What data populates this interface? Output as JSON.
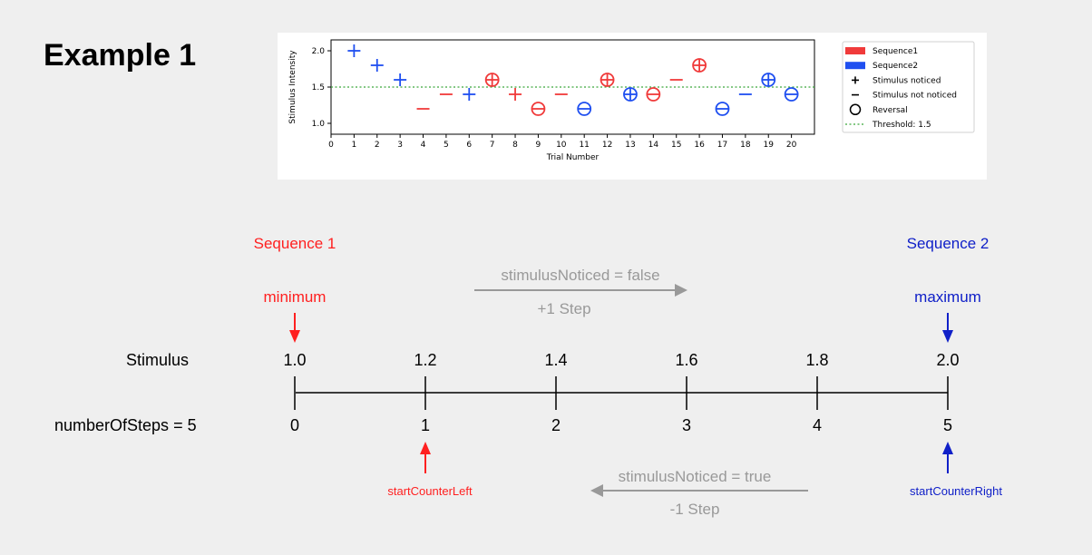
{
  "title": "Example 1",
  "chart_data": {
    "type": "scatter",
    "title": "",
    "xlabel": "Trial Number",
    "ylabel": "Stimulus Intensity",
    "xlim": [
      0,
      21
    ],
    "ylim": [
      0.85,
      2.15
    ],
    "xticks": [
      0,
      1,
      2,
      3,
      4,
      5,
      6,
      7,
      8,
      9,
      10,
      11,
      12,
      13,
      14,
      15,
      16,
      17,
      18,
      19,
      20
    ],
    "yticks": [
      1.0,
      1.5,
      2.0
    ],
    "ytick_labels": [
      "1.0",
      "1.5",
      "2.0"
    ],
    "threshold": 1.5,
    "points": [
      {
        "x": 1,
        "y": 2.0,
        "seq": 2,
        "noticed": true,
        "reversal": false
      },
      {
        "x": 2,
        "y": 1.8,
        "seq": 2,
        "noticed": true,
        "reversal": false
      },
      {
        "x": 3,
        "y": 1.6,
        "seq": 2,
        "noticed": true,
        "reversal": false
      },
      {
        "x": 4,
        "y": 1.2,
        "seq": 1,
        "noticed": false,
        "reversal": false
      },
      {
        "x": 5,
        "y": 1.4,
        "seq": 1,
        "noticed": false,
        "reversal": false
      },
      {
        "x": 6,
        "y": 1.4,
        "seq": 2,
        "noticed": true,
        "reversal": false
      },
      {
        "x": 7,
        "y": 1.6,
        "seq": 1,
        "noticed": true,
        "reversal": true
      },
      {
        "x": 8,
        "y": 1.4,
        "seq": 1,
        "noticed": true,
        "reversal": false
      },
      {
        "x": 9,
        "y": 1.2,
        "seq": 1,
        "noticed": false,
        "reversal": true
      },
      {
        "x": 10,
        "y": 1.4,
        "seq": 1,
        "noticed": false,
        "reversal": false
      },
      {
        "x": 11,
        "y": 1.2,
        "seq": 2,
        "noticed": false,
        "reversal": true
      },
      {
        "x": 12,
        "y": 1.6,
        "seq": 1,
        "noticed": true,
        "reversal": true
      },
      {
        "x": 13,
        "y": 1.4,
        "seq": 2,
        "noticed": true,
        "reversal": true
      },
      {
        "x": 14,
        "y": 1.4,
        "seq": 1,
        "noticed": false,
        "reversal": true
      },
      {
        "x": 15,
        "y": 1.6,
        "seq": 1,
        "noticed": false,
        "reversal": false
      },
      {
        "x": 16,
        "y": 1.8,
        "seq": 1,
        "noticed": true,
        "reversal": true
      },
      {
        "x": 17,
        "y": 1.2,
        "seq": 2,
        "noticed": false,
        "reversal": true
      },
      {
        "x": 18,
        "y": 1.4,
        "seq": 2,
        "noticed": false,
        "reversal": false
      },
      {
        "x": 19,
        "y": 1.6,
        "seq": 2,
        "noticed": true,
        "reversal": true
      },
      {
        "x": 20,
        "y": 1.4,
        "seq": 2,
        "noticed": false,
        "reversal": true
      }
    ],
    "legend": {
      "placement": "right",
      "entries": [
        {
          "label": "Sequence1",
          "kind": "patch",
          "color": "#f03a3a"
        },
        {
          "label": "Sequence2",
          "kind": "patch",
          "color": "#1f4ff0"
        },
        {
          "label": "Stimulus noticed",
          "kind": "plus"
        },
        {
          "label": "Stimulus not noticed",
          "kind": "minus"
        },
        {
          "label": "Reversal",
          "kind": "circle"
        },
        {
          "label": "Threshold: 1.5",
          "kind": "dotted",
          "color": "#3aa63a"
        }
      ]
    },
    "colors": {
      "seq1": "#f03a3a",
      "seq2": "#1f4ff0",
      "threshold": "#3aa63a"
    },
    "grid": false
  },
  "diagram": {
    "sequence1_label": "Sequence 1",
    "sequence2_label": "Sequence 2",
    "minimum_label": "minimum",
    "maximum_label": "maximum",
    "stimulus_label": "Stimulus",
    "steps_label": "numberOfSteps = 5",
    "stimulus_values": [
      "1.0",
      "1.2",
      "1.4",
      "1.6",
      "1.8",
      "2.0"
    ],
    "step_indices": [
      "0",
      "1",
      "2",
      "3",
      "4",
      "5"
    ],
    "top_arrow_text": "stimulusNoticed = false",
    "top_arrow_sub": "+1 Step",
    "bottom_arrow_text": "stimulusNoticed = true",
    "bottom_arrow_sub": "-1 Step",
    "start_left_label": "startCounterLeft",
    "start_right_label": "startCounterRight",
    "colors": {
      "red": "#ff2020",
      "blue": "#1020c8",
      "gray": "#999999"
    }
  }
}
